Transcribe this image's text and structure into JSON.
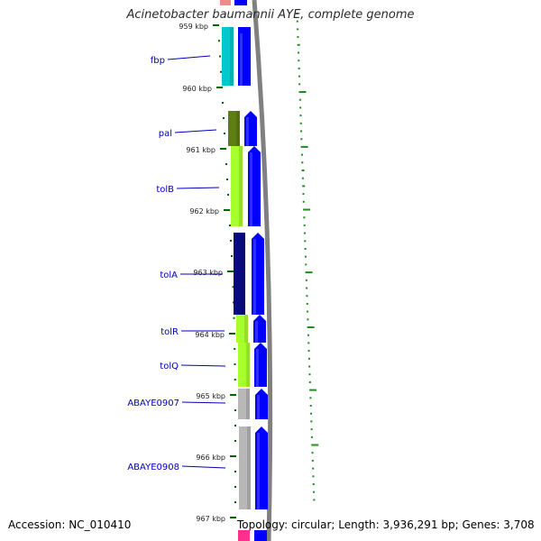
{
  "title": "Acinetobacter baumannii AYE, complete genome",
  "footer": {
    "accession": "Accession: NC_010410",
    "stats": "Topology: circular; Length: 3,936,291 bp; Genes: 3,708"
  },
  "colors": {
    "forward_strand": "#0000ff",
    "label_text": "#0000bb",
    "tick": "#006600",
    "gc_marks": "#228b22",
    "backbone": "#888888"
  },
  "ticks": [
    {
      "label": "959 kbp"
    },
    {
      "label": "960 kbp"
    },
    {
      "label": "961 kbp"
    },
    {
      "label": "962 kbp"
    },
    {
      "label": "963 kbp"
    },
    {
      "label": "964 kbp"
    },
    {
      "label": "965 kbp"
    },
    {
      "label": "966 kbp"
    },
    {
      "label": "967 kbp"
    }
  ],
  "genes": [
    {
      "label": "fbp",
      "color": "#00c8cc"
    },
    {
      "label": "pal",
      "color": "#5e7e14"
    },
    {
      "label": "tolB",
      "color": "#a8ff2e"
    },
    {
      "label": "tolA",
      "color": "#0a0a80"
    },
    {
      "label": "tolR",
      "color": "#a8ff2e"
    },
    {
      "label": "tolQ",
      "color": "#a8ff2e"
    },
    {
      "label": "ABAYE0907",
      "color": "#b8b8b8"
    },
    {
      "label": "ABAYE0908",
      "color": "#b8b8b8"
    }
  ]
}
